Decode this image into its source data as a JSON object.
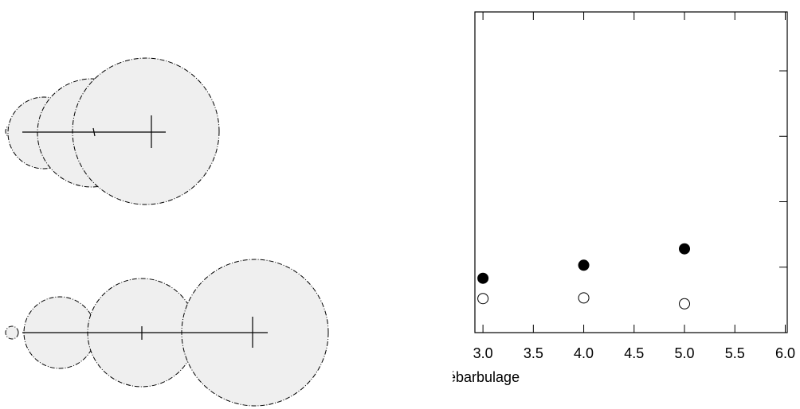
{
  "chart_data": {
    "type": "scatter",
    "x_label": "ébarbulage",
    "xlim": [
      2.92,
      6.02
    ],
    "xticks": [
      {
        "value": 3,
        "label": "3.0"
      },
      3.5,
      {
        "value": 4,
        "label": "4.0"
      },
      4.5,
      {
        "value": 5,
        "label": "5.0"
      },
      5.5,
      {
        "value": 6,
        "label": "6.0"
      }
    ],
    "ylim": [
      0,
      4.9
    ],
    "yticks": [
      0,
      1,
      2,
      3,
      4
    ],
    "series": [
      {
        "color": "#000000",
        "x": [
          3,
          4,
          5
        ],
        "values": [
          0.83,
          1.03,
          1.28
        ]
      },
      {
        "color": "#ffffff",
        "x": [
          3,
          4,
          5
        ],
        "values": [
          0.52,
          0.53,
          0.44
        ]
      }
    ]
  }
}
